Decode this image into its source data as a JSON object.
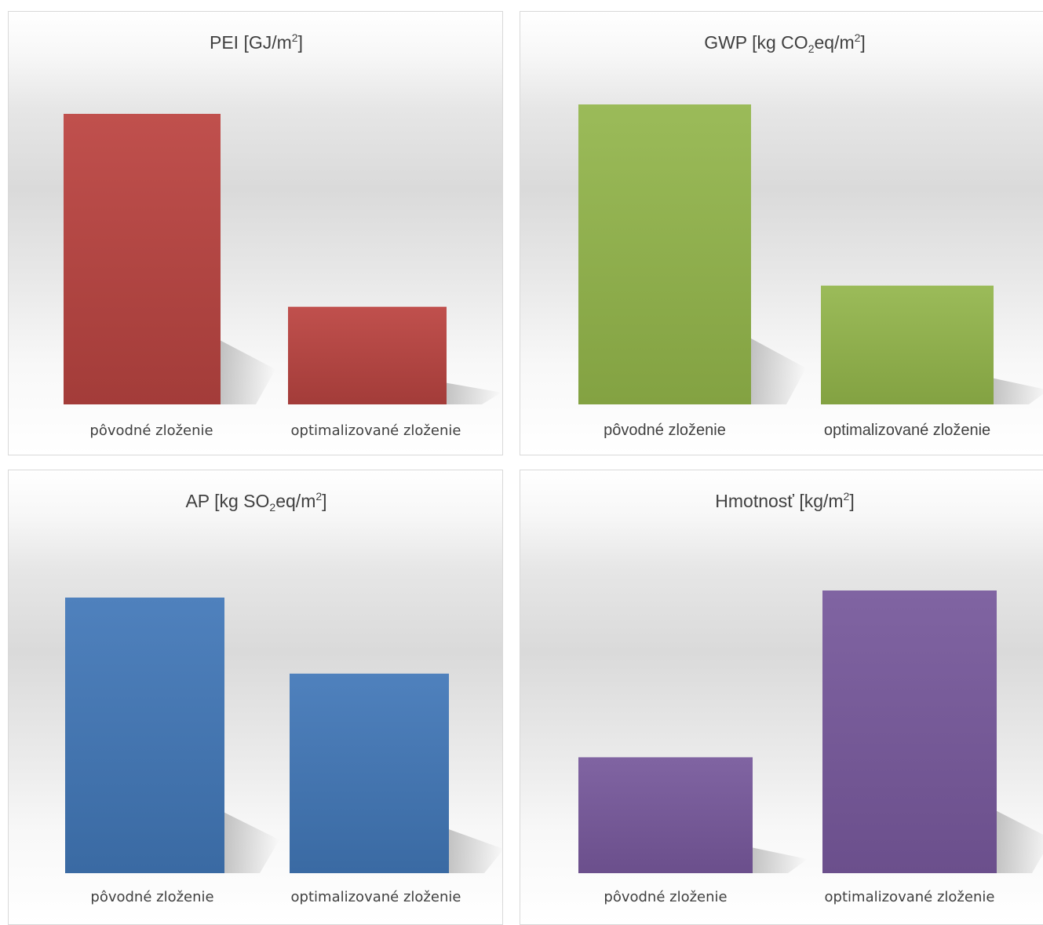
{
  "chart_data": [
    {
      "type": "bar",
      "title": "PEI [GJ/m",
      "title_unit_sup": "2",
      "title_end": "]",
      "categories": [
        "pôvodné zloženie",
        "optimalizované zloženie"
      ],
      "values": [
        1.0,
        0.336
      ],
      "ylim": [
        0,
        1.1
      ],
      "grid": false,
      "color_top": "#c0504d",
      "color_bottom": "#a33c39"
    },
    {
      "type": "bar",
      "title": "GWP [kg CO",
      "title_sub": "2",
      "title_mid": "eq/m",
      "title_unit_sup": "2",
      "title_end": "]",
      "categories": [
        "pôvodné zloženie",
        "optimalizované zloženie"
      ],
      "values": [
        1.0,
        0.396
      ],
      "ylim": [
        0,
        1.1
      ],
      "grid": false,
      "color_top": "#9bbb59",
      "color_bottom": "#83a242"
    },
    {
      "type": "bar",
      "title": "AP [kg SO",
      "title_sub": "2",
      "title_mid": "eq/m",
      "title_unit_sup": "2",
      "title_end": "]",
      "categories": [
        "pôvodné zloženie",
        "optimalizované zloženie"
      ],
      "values": [
        1.0,
        0.724
      ],
      "ylim": [
        0,
        1.1
      ],
      "grid": false,
      "color_top": "#4f81bd",
      "color_bottom": "#3a6aa3"
    },
    {
      "type": "bar",
      "title": "Hmotnosť [kg/m",
      "title_unit_sup": "2",
      "title_end": "]",
      "categories": [
        "pôvodné zloženie",
        "optimalizované zloženie"
      ],
      "values": [
        0.41,
        1.0
      ],
      "ylim": [
        0,
        1.1
      ],
      "grid": false,
      "color_top": "#8064a2",
      "color_bottom": "#6b4f8c"
    }
  ]
}
